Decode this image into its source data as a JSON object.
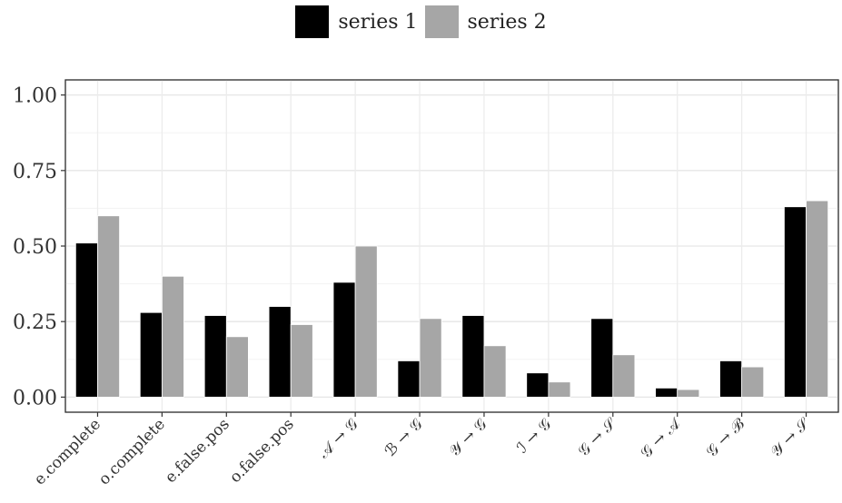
{
  "chart_data": {
    "type": "bar",
    "categories": [
      "e.complete",
      "o.complete",
      "e.false.pos",
      "o.false.pos",
      "𝒜 → 𝒢",
      "ℬ → 𝒢",
      "𝒴 → 𝒢",
      "ℐ → 𝒢",
      "𝒢 → 𝒮",
      "𝒢 → 𝒜",
      "𝒢 → ℬ",
      "𝒴 → 𝒮"
    ],
    "series": [
      {
        "name": "series 1",
        "color": "#000000",
        "values": [
          0.51,
          0.28,
          0.27,
          0.3,
          0.38,
          0.12,
          0.27,
          0.08,
          0.26,
          0.03,
          0.12,
          0.63
        ]
      },
      {
        "name": "series 2",
        "color": "#a6a6a6",
        "values": [
          0.6,
          0.4,
          0.2,
          0.24,
          0.5,
          0.26,
          0.17,
          0.05,
          0.14,
          0.025,
          0.1,
          0.65
        ]
      }
    ],
    "yticks": [
      "0.00",
      "0.25",
      "0.50",
      "0.75",
      "1.00"
    ],
    "ylim": [
      -0.05,
      1.05
    ],
    "grid": true,
    "legend_position": "top",
    "xlabel": "",
    "ylabel": "",
    "title": ""
  }
}
